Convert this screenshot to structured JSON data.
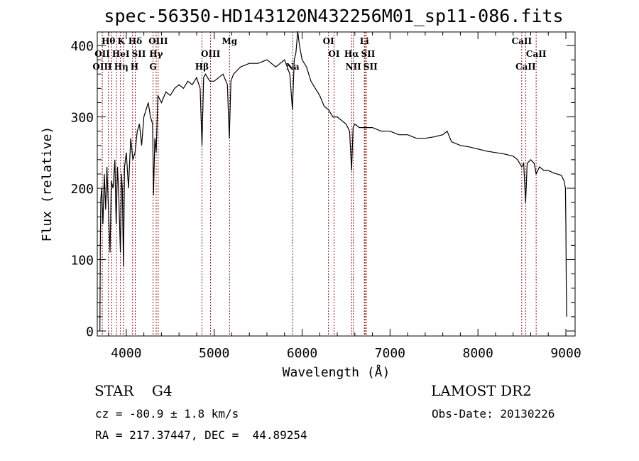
{
  "chart_data": {
    "type": "line",
    "title": "spec-56350-HD143120N432256M01_sp11-086.fits",
    "xlabel": "Wavelength (Å)",
    "ylabel": "Flux (relative)",
    "xlim": [
      3670,
      9105
    ],
    "ylim": [
      -7,
      419
    ],
    "x_ticks": [
      4000,
      5000,
      6000,
      7000,
      8000,
      9000
    ],
    "y_ticks": [
      0,
      100,
      200,
      300,
      400
    ],
    "series": [
      {
        "name": "spectrum",
        "x": [
          3700,
          3705,
          3710,
          3720,
          3735,
          3750,
          3765,
          3780,
          3800,
          3815,
          3830,
          3850,
          3870,
          3885,
          3900,
          3915,
          3933,
          3945,
          3955,
          3968,
          3980,
          4000,
          4025,
          4050,
          4075,
          4100,
          4125,
          4150,
          4175,
          4200,
          4225,
          4250,
          4275,
          4300,
          4310,
          4325,
          4340,
          4360,
          4400,
          4450,
          4500,
          4550,
          4600,
          4650,
          4700,
          4750,
          4800,
          4840,
          4861,
          4880,
          4900,
          4950,
          5000,
          5050,
          5100,
          5150,
          5172,
          5190,
          5220,
          5300,
          5400,
          5500,
          5600,
          5700,
          5800,
          5860,
          5890,
          5910,
          5930,
          5950,
          5970,
          6000,
          6050,
          6100,
          6150,
          6200,
          6250,
          6300,
          6350,
          6400,
          6450,
          6500,
          6540,
          6563,
          6580,
          6600,
          6650,
          6700,
          6800,
          6900,
          7000,
          7100,
          7200,
          7300,
          7400,
          7500,
          7600,
          7650,
          7700,
          7800,
          7900,
          8000,
          8100,
          8200,
          8300,
          8400,
          8450,
          8498,
          8520,
          8542,
          8560,
          8600,
          8640,
          8662,
          8700,
          8750,
          8800,
          8850,
          8900,
          8950,
          8980,
          8995,
          9000,
          9005,
          9010
        ],
        "y": [
          0,
          120,
          185,
          200,
          150,
          220,
          170,
          230,
          160,
          110,
          210,
          200,
          240,
          150,
          230,
          190,
          110,
          220,
          200,
          90,
          230,
          250,
          200,
          270,
          240,
          250,
          280,
          290,
          260,
          300,
          310,
          320,
          300,
          290,
          190,
          270,
          250,
          330,
          320,
          335,
          330,
          340,
          345,
          340,
          350,
          345,
          355,
          340,
          260,
          355,
          360,
          350,
          350,
          355,
          360,
          345,
          270,
          350,
          360,
          370,
          375,
          375,
          380,
          370,
          380,
          360,
          310,
          380,
          390,
          420,
          400,
          380,
          370,
          350,
          340,
          330,
          315,
          310,
          300,
          300,
          295,
          290,
          280,
          225,
          285,
          290,
          285,
          285,
          285,
          280,
          280,
          275,
          275,
          270,
          270,
          272,
          275,
          280,
          265,
          260,
          258,
          255,
          252,
          250,
          248,
          245,
          240,
          230,
          235,
          180,
          235,
          240,
          235,
          220,
          230,
          225,
          225,
          222,
          220,
          218,
          210,
          200,
          150,
          60,
          20
        ]
      }
    ],
    "line_markers": [
      {
        "label": "Hθ",
        "wl": 3797,
        "row": 0
      },
      {
        "label": "K",
        "wl": 3934,
        "row": 0
      },
      {
        "label": "Hδ",
        "wl": 4102,
        "row": 0
      },
      {
        "label": "OIII",
        "wl": 4363,
        "row": 0
      },
      {
        "label": "Mg",
        "wl": 5175,
        "row": 0
      },
      {
        "label": "OI",
        "wl": 6300,
        "row": 0
      },
      {
        "label": "Li",
        "wl": 6708,
        "row": 0
      },
      {
        "label": "CaII",
        "wl": 8498,
        "row": 0
      },
      {
        "label": "OII",
        "wl": 3727,
        "row": 1
      },
      {
        "label": "HeI",
        "wl": 3889,
        "row": 1
      },
      {
        "label": "SII",
        "wl": 4072,
        "row": 1
      },
      {
        "label": "Hγ",
        "wl": 4340,
        "row": 1
      },
      {
        "label": "OIII",
        "wl": 4959,
        "row": 1
      },
      {
        "label": "OI",
        "wl": 6363,
        "row": 1
      },
      {
        "label": "Hα",
        "wl": 6563,
        "row": 1
      },
      {
        "label": "SII",
        "wl": 6716,
        "row": 1
      },
      {
        "label": "CaII",
        "wl": 8662,
        "row": 1
      },
      {
        "label": "OIII",
        "wl": 3727,
        "row": 2
      },
      {
        "label": "Hη",
        "wl": 3835,
        "row": 2
      },
      {
        "label": "H",
        "wl": 3968,
        "row": 2
      },
      {
        "label": "G",
        "wl": 4304,
        "row": 2
      },
      {
        "label": "Hβ",
        "wl": 4861,
        "row": 2
      },
      {
        "label": "Na",
        "wl": 5893,
        "row": 2
      },
      {
        "label": "NII",
        "wl": 6583,
        "row": 2
      },
      {
        "label": "SII",
        "wl": 6731,
        "row": 2
      },
      {
        "label": "CaII",
        "wl": 8542,
        "row": 2
      }
    ],
    "marker_color": "#8b1a1a"
  },
  "info": {
    "object": "STAR    G4",
    "survey": "LAMOST DR2",
    "cz": "cz = -80.9 ± 1.8 km/s",
    "obs_date": "Obs-Date: 20130226",
    "radec": "RA = 217.37447, DEC =  44.89254"
  }
}
